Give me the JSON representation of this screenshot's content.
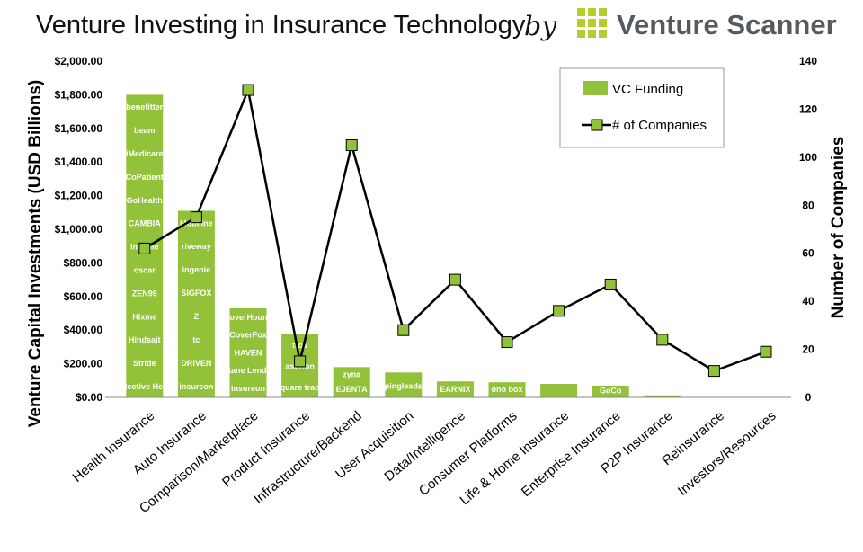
{
  "header": {
    "title": "Venture Investing in Insurance Technology",
    "by": "by",
    "brand": "Venture Scanner"
  },
  "colors": {
    "bar": "#92C13A",
    "line": "#000000",
    "marker": "#92C13A",
    "brand_green": "#B5CE2D"
  },
  "chart_data": {
    "type": "bar",
    "title": "Venture Investing in Insurance Technology",
    "categories": [
      "Health Insurance",
      "Auto Insurance",
      "Comparison/Marketplace",
      "Product Insurance",
      "Infrastructure/Backend",
      "User Acquisition",
      "Data/Intelligence",
      "Consumer Platforms",
      "Life & Home Insurance",
      "Enterprise Insurance",
      "P2P Insurance",
      "Reinsurance",
      "Investors/Resources"
    ],
    "series": [
      {
        "name": "VC Funding",
        "type": "bar",
        "axis": "left",
        "values": [
          1800,
          1110,
          530,
          375,
          180,
          148,
          95,
          90,
          80,
          70,
          12,
          0,
          0
        ]
      },
      {
        "name": "# of Companies",
        "type": "line",
        "axis": "right",
        "values": [
          62,
          75,
          128,
          15,
          105,
          28,
          49,
          23,
          36,
          47,
          24,
          11,
          19
        ]
      }
    ],
    "ylabel": "Venture Capital Investments (USD Billions)",
    "y2label": "Number of Companies",
    "ylim": [
      0,
      2000
    ],
    "y2lim": [
      0,
      140
    ],
    "y_ticks": [
      "$0.00",
      "$200.00",
      "$400.00",
      "$600.00",
      "$800.00",
      "$1,000.00",
      "$1,200.00",
      "$1,400.00",
      "$1,600.00",
      "$1,800.00",
      "$2,000.00"
    ],
    "y2_ticks": [
      "0",
      "20",
      "40",
      "60",
      "80",
      "100",
      "120",
      "140"
    ],
    "grid": false,
    "legend": "top-right",
    "logos": {
      "health": [
        "benefitter",
        "beam",
        "iMedicare",
        "CoPatient",
        "GoHealth",
        "CAMBIA",
        "ingenie",
        "oscar",
        "ZEN99",
        "Hixme",
        "Hindsait",
        "Stride",
        "Collective Health"
      ],
      "auto": [
        "Mobiline",
        "riveway",
        "ingenie",
        "SIGFOX",
        "Z",
        "tc",
        "DRIVEN",
        "insureon"
      ],
      "comparison": [
        "CoverHound",
        "CoverFox",
        "HAVEN",
        "Octane Lending",
        "insureon"
      ],
      "product": [
        "trov",
        "asurion",
        "square trade"
      ],
      "infrastructure": [
        "zyna",
        "EJENTA"
      ],
      "user_acq": [
        "pingleads"
      ],
      "data": [
        "EARNIX"
      ],
      "consumer": [
        "ono box"
      ],
      "enterprise": [
        "GoCo"
      ]
    }
  }
}
